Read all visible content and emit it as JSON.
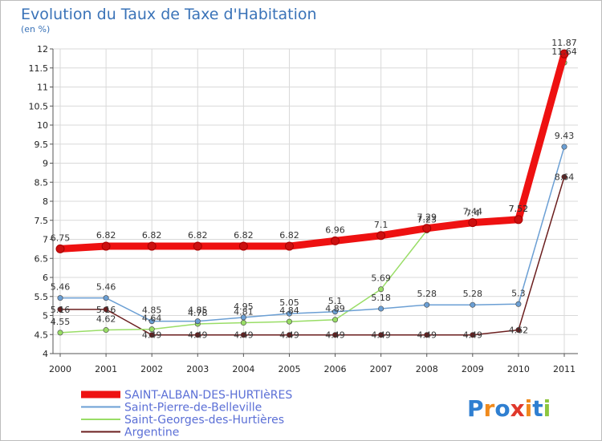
{
  "chart_data": {
    "type": "line",
    "title": "Evolution du Taux de Taxe d'Habitation",
    "subtitle": "(en %)",
    "xlabel": "",
    "ylabel": "",
    "ylim": [
      4,
      12
    ],
    "y_ticks": [
      "4",
      "4.5",
      "5",
      "5.5",
      "6",
      "6.5",
      "7",
      "7.5",
      "8",
      "8.5",
      "9",
      "9.5",
      "10",
      "10.5",
      "11",
      "11.5",
      "12"
    ],
    "categories": [
      "2000",
      "2001",
      "2002",
      "2003",
      "2004",
      "2005",
      "2006",
      "2007",
      "2008",
      "2009",
      "2010",
      "2011"
    ],
    "grid": true,
    "legend_position": "bottom-left",
    "series": [
      {
        "name": "Argentine",
        "color": "#6b1e1e",
        "values": [
          5.16,
          5.16,
          4.49,
          4.49,
          4.49,
          4.49,
          4.49,
          4.49,
          4.49,
          4.49,
          4.62,
          8.64
        ],
        "labels": [
          "5.16",
          "5.16",
          "4.49",
          "4.49",
          "4.49",
          "4.49",
          "4.49",
          "4.49",
          "4.49",
          "4.49",
          "4.62",
          "8.64"
        ]
      },
      {
        "name": "Saint-Georges-des-Hurtières",
        "color": "#99dd66",
        "values": [
          4.55,
          4.62,
          4.64,
          4.78,
          4.81,
          4.84,
          4.89,
          5.69,
          7.23,
          7.4,
          7.52,
          11.64
        ],
        "labels": [
          "4.55",
          "4.62",
          "4.64",
          "4.78",
          "4.81",
          "4.84",
          "4.89",
          "5.69",
          "7.23",
          "7.4",
          "7.52",
          "11.64"
        ]
      },
      {
        "name": "Saint-Pierre-de-Belleville",
        "color": "#6b9fd4",
        "values": [
          5.46,
          5.46,
          4.85,
          4.85,
          4.95,
          5.05,
          5.1,
          5.18,
          5.28,
          5.28,
          5.3,
          9.43
        ],
        "labels": [
          "5.46",
          "5.46",
          "4.85",
          "4.85",
          "4.95",
          "5.05",
          "5.1",
          "5.18",
          "5.28",
          "5.28",
          "5.3",
          "9.43"
        ]
      },
      {
        "name": "SAINT-ALBAN-DES-HURTIèRES",
        "color": "#ee1111",
        "values": [
          6.75,
          6.82,
          6.82,
          6.82,
          6.82,
          6.82,
          6.96,
          7.1,
          7.29,
          7.44,
          7.52,
          11.87
        ],
        "labels": [
          "6.75",
          "6.82",
          "6.82",
          "6.82",
          "6.82",
          "6.82",
          "6.96",
          "7.1",
          "7.29",
          "7.44",
          "7.52",
          "11.87"
        ]
      }
    ],
    "legend": [
      "SAINT-ALBAN-DES-HURTIèRES",
      "Saint-Pierre-de-Belleville",
      "Saint-Georges-des-Hurtières",
      "Argentine"
    ]
  },
  "logo": {
    "text": "Proxiti",
    "letters": [
      "P",
      "r",
      "o",
      "x",
      "i",
      "t",
      "i"
    ],
    "colors": [
      "#2f7fd1",
      "#f08a1c",
      "#2f7fd1",
      "#e0382b",
      "#f08a1c",
      "#2f7fd1",
      "#8dc63f"
    ]
  },
  "colors": {
    "title": "#3a73b8",
    "grid": "#d9d9d9",
    "axis": "#555555"
  }
}
